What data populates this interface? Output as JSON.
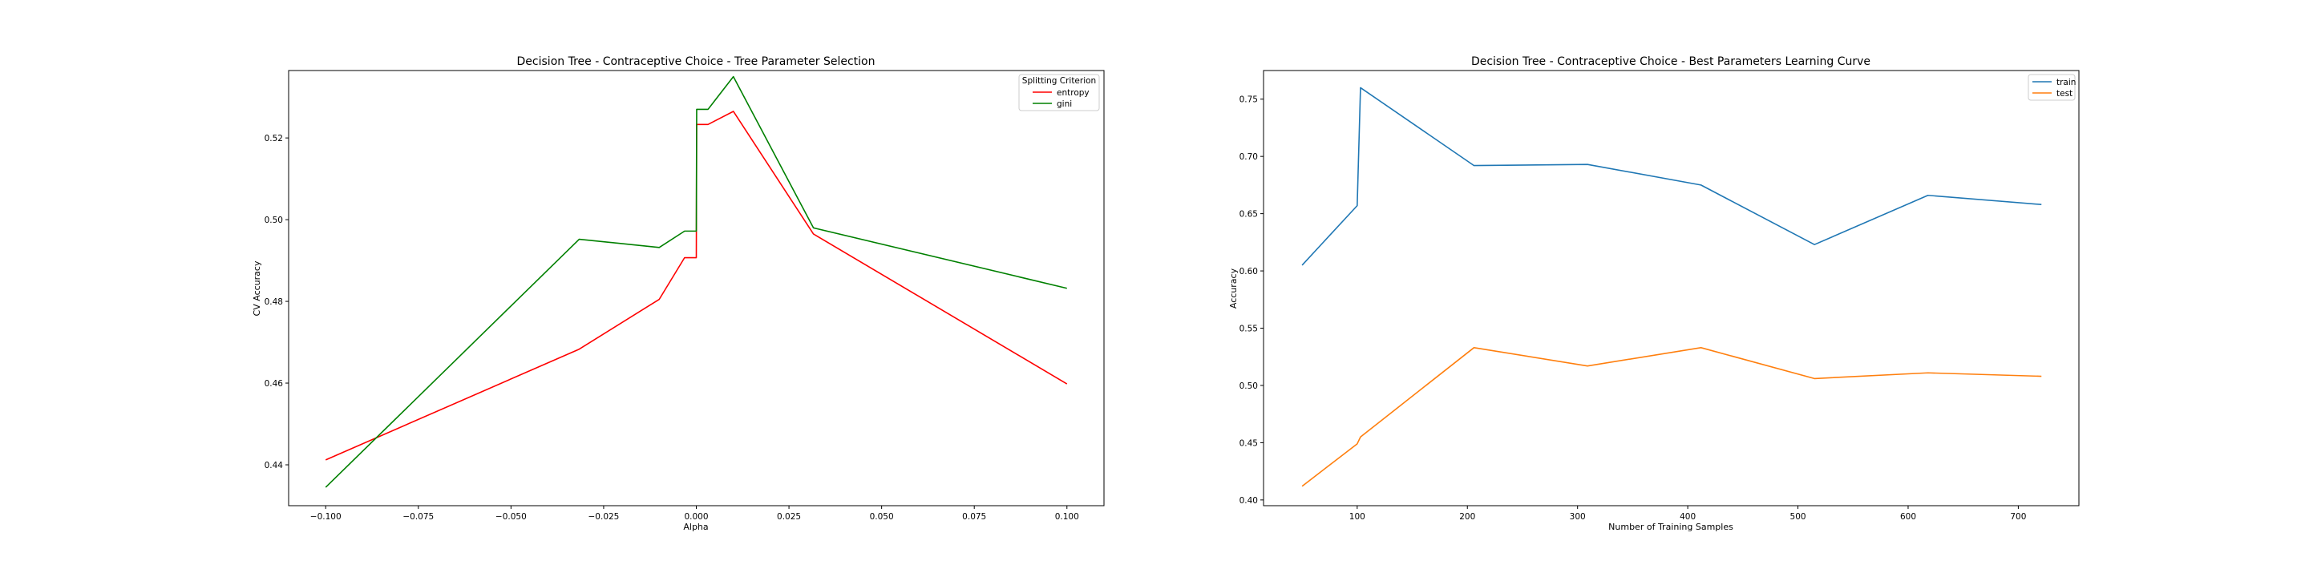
{
  "chart_data": [
    {
      "type": "line",
      "title": "Decision Tree - Contraceptive Choice - Tree Parameter Selection",
      "xlabel": "Alpha",
      "ylabel": "CV Accuracy",
      "xlim": [
        -0.11,
        0.11
      ],
      "ylim": [
        0.43,
        0.5365
      ],
      "xticks": [
        -0.1,
        -0.075,
        -0.05,
        -0.025,
        0.0,
        0.025,
        0.05,
        0.075,
        0.1
      ],
      "xtick_labels": [
        "−0.100",
        "−0.075",
        "−0.050",
        "−0.025",
        "0.000",
        "0.025",
        "0.050",
        "0.075",
        "0.100"
      ],
      "yticks": [
        0.44,
        0.46,
        0.48,
        0.5,
        0.52
      ],
      "ytick_labels": [
        "0.44",
        "0.46",
        "0.48",
        "0.50",
        "0.52"
      ],
      "grid": false,
      "legend": {
        "title": "Splitting Criterion",
        "placement": "top-right"
      },
      "series": [
        {
          "name": "entropy",
          "color": "#ff0000",
          "x": [
            -0.1,
            -0.0316,
            -0.01,
            -0.00316,
            -0.001,
            -0.000316,
            -0.0001,
            0.0,
            0.0001,
            0.000316,
            0.001,
            0.00316,
            0.01,
            0.0316,
            0.1
          ],
          "y": [
            0.4412,
            0.4683,
            0.4805,
            0.4907,
            0.4907,
            0.4907,
            0.4907,
            0.4907,
            0.5233,
            0.5233,
            0.5233,
            0.5233,
            0.5265,
            0.4965,
            0.4598
          ]
        },
        {
          "name": "gini",
          "color": "#008000",
          "x": [
            -0.1,
            -0.0316,
            -0.01,
            -0.00316,
            -0.001,
            -0.000316,
            -0.0001,
            0.0,
            0.0001,
            0.000316,
            0.001,
            0.00316,
            0.01,
            0.0316,
            0.1
          ],
          "y": [
            0.4345,
            0.4952,
            0.4932,
            0.4972,
            0.4972,
            0.4972,
            0.4972,
            0.4972,
            0.527,
            0.527,
            0.527,
            0.527,
            0.535,
            0.498,
            0.4832
          ]
        }
      ]
    },
    {
      "type": "line",
      "title": "Decision Tree - Contraceptive Choice -  Best Parameters Learning Curve",
      "xlabel": "Number of Training Samples",
      "ylabel": "Accuracy",
      "xlim": [
        15,
        755
      ],
      "ylim": [
        0.395,
        0.775
      ],
      "xticks": [
        100,
        200,
        300,
        400,
        500,
        600,
        700
      ],
      "xtick_labels": [
        "100",
        "200",
        "300",
        "400",
        "500",
        "600",
        "700"
      ],
      "yticks": [
        0.4,
        0.45,
        0.5,
        0.55,
        0.6,
        0.65,
        0.7,
        0.75
      ],
      "ytick_labels": [
        "0.40",
        "0.45",
        "0.50",
        "0.55",
        "0.60",
        "0.65",
        "0.70",
        "0.75"
      ],
      "grid": false,
      "legend": {
        "placement": "top-right"
      },
      "series": [
        {
          "name": "train",
          "color": "#1f77b4",
          "x": [
            50,
            100,
            103,
            206,
            309,
            412,
            515,
            618,
            721
          ],
          "y": [
            0.605,
            0.657,
            0.76,
            0.692,
            0.693,
            0.675,
            0.623,
            0.666,
            0.658
          ]
        },
        {
          "name": "test",
          "color": "#ff7f0e",
          "x": [
            50,
            100,
            103,
            206,
            309,
            412,
            515,
            618,
            721
          ],
          "y": [
            0.412,
            0.449,
            0.455,
            0.533,
            0.517,
            0.533,
            0.506,
            0.511,
            0.508
          ]
        }
      ]
    }
  ]
}
